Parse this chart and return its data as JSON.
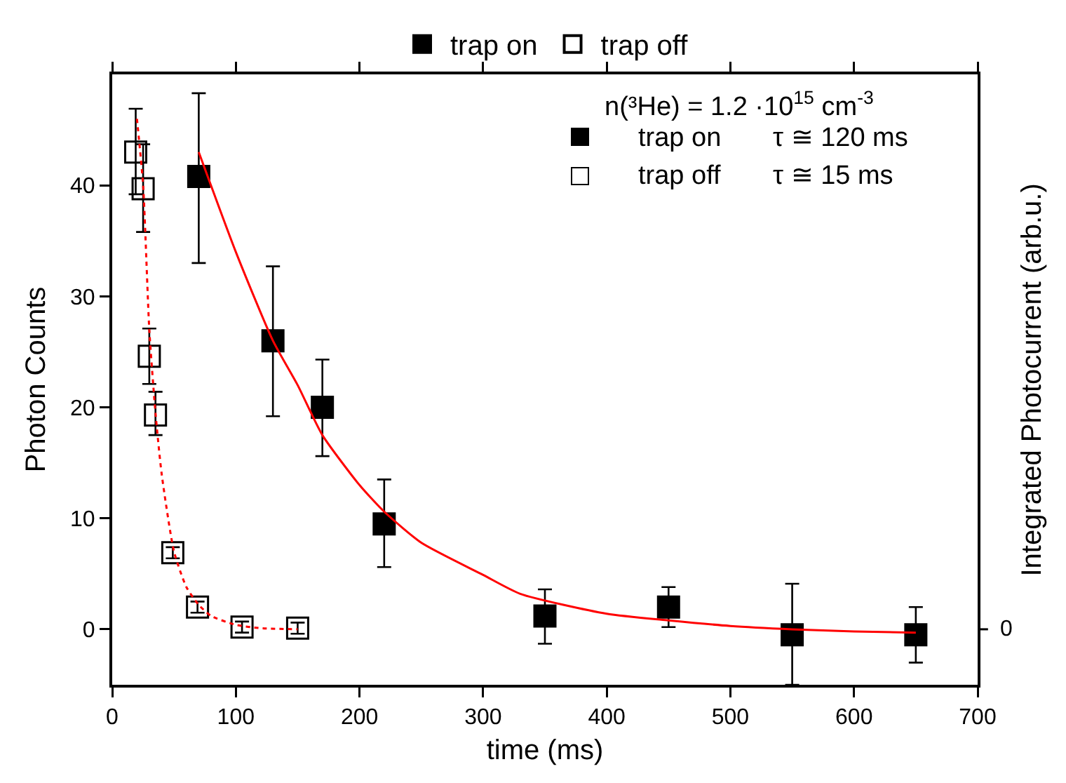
{
  "chart_data": {
    "type": "scatter",
    "xlabel": "time (ms)",
    "ylabel": "Photon Counts",
    "y2label": "Integrated Photocurrent (arb.u.)",
    "xlim": [
      0,
      700
    ],
    "xticks": [
      0,
      100,
      200,
      300,
      400,
      500,
      600,
      700
    ],
    "ylim": [
      -5,
      50
    ],
    "yticks": [
      0,
      10,
      20,
      30,
      40
    ],
    "legend": "top",
    "marker": "square",
    "grid": false,
    "annotations": [
      "n(³He) = 1.2 ·10$^{15}$ cm$^{-3}$",
      "trap on",
      "τ ≅ 120 ms",
      "trap off",
      "τ ≅ 15 ms",
      "0"
    ],
    "series": [
      {
        "name": "trap on",
        "color": "#000000",
        "x": [
          70,
          130,
          170,
          220,
          350,
          450,
          550,
          650
        ],
        "values": [
          40.8,
          26,
          20,
          9.5,
          1.2,
          2.0,
          -0.5,
          -0.5
        ],
        "errors": [
          [
            33,
            48.3
          ],
          [
            19.2,
            32.7
          ],
          [
            15.6,
            24.3
          ],
          [
            5.6,
            13.5
          ],
          [
            -1.3,
            3.6
          ],
          [
            0.2,
            3.8
          ],
          [
            -5,
            4.1
          ],
          [
            -3.0,
            2.0
          ]
        ]
      },
      {
        "name": "trap off",
        "color": "#ffffff",
        "x": [
          19,
          25,
          30,
          35,
          49,
          69,
          105,
          150
        ],
        "values": [
          43,
          39.7,
          24.6,
          19.3,
          6.9,
          2.0,
          0.2,
          0.1
        ],
        "errors": [
          [
            39.2,
            46.9
          ],
          [
            35.8,
            43.7
          ],
          [
            22.1,
            27.1
          ],
          [
            17.5,
            21.4
          ],
          0.5,
          0.5,
          0.5,
          0.5
        ]
      },
      {
        "type": "line",
        "color": "#ff0000",
        "line_style": "solid",
        "marker": "none",
        "x": [
          70,
          100,
          130,
          150,
          170,
          200,
          220,
          250,
          300,
          330,
          400,
          450,
          500,
          550,
          600,
          650
        ],
        "values": [
          43,
          34,
          26,
          22,
          17.5,
          13,
          10.6,
          7.8,
          4.9,
          3.2,
          1.4,
          0.8,
          0.3,
          0,
          -0.2,
          -0.3
        ]
      },
      {
        "type": "line",
        "color": "#ff0000",
        "line_style": "dotted",
        "marker": "none",
        "x": [
          20,
          25,
          30,
          35,
          40,
          50,
          60,
          70,
          80,
          100,
          120,
          150
        ],
        "values": [
          46,
          40,
          27,
          19.5,
          14,
          7,
          3.8,
          2.2,
          1.2,
          0.4,
          0.1,
          0
        ]
      }
    ]
  }
}
